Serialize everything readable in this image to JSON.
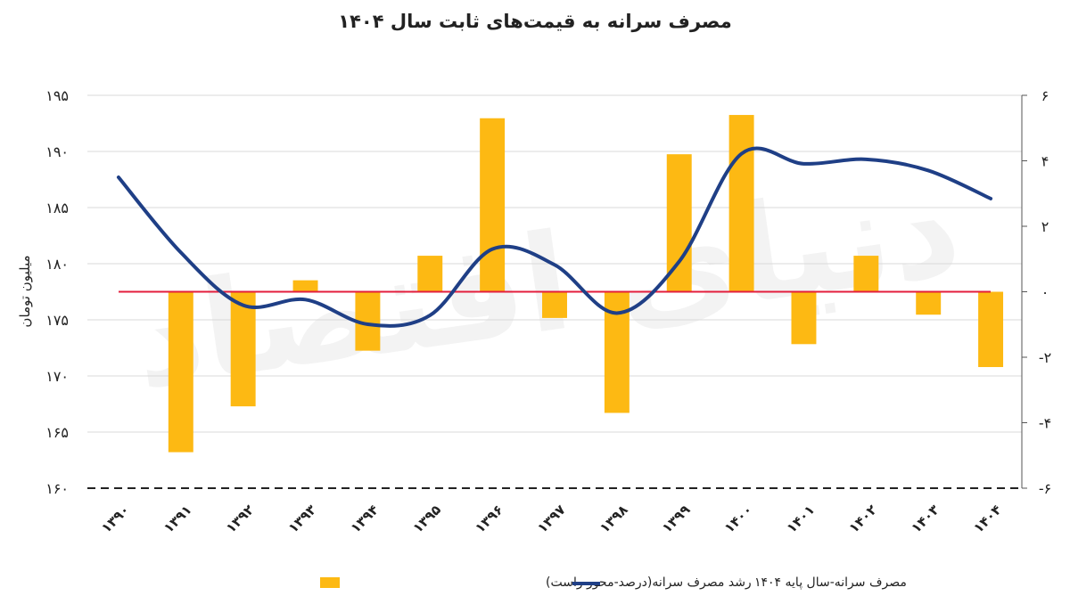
{
  "chart_data": {
    "type": "bar+line",
    "title": "مصرف سرانه به قیمت‌های ثابت سال ۱۴۰۴",
    "ylabel_left": "میلیون تومان",
    "ylim_left": [
      160,
      195
    ],
    "ylim_right": [
      -6,
      6
    ],
    "left_ticks": [
      "۱۶۰",
      "۱۶۵",
      "۱۷۰",
      "۱۷۵",
      "۱۸۰",
      "۱۸۵",
      "۱۹۰",
      "۱۹۵"
    ],
    "right_ticks": [
      "-۶",
      "-۴",
      "-۲",
      "۰",
      "۲",
      "۴",
      "۶"
    ],
    "categories": [
      "۱۳۹۰",
      "۱۳۹۱",
      "۱۳۹۲",
      "۱۳۹۳",
      "۱۳۹۴",
      "۱۳۹۵",
      "۱۳۹۶",
      "۱۳۹۷",
      "۱۳۹۸",
      "۱۳۹۹",
      "۱۴۰۰",
      "۱۴۰۱",
      "۱۴۰۲",
      "۱۴۰۳",
      "۱۴۰۴"
    ],
    "series": [
      {
        "name": "رشد مصرف سرانه(درصد-محور راست)",
        "kind": "bar",
        "axis": "right",
        "color": "#FDB913",
        "values": [
          0,
          -4.9,
          -3.5,
          0.35,
          -1.8,
          1.1,
          5.3,
          -0.8,
          -3.7,
          4.2,
          5.4,
          -1.6,
          1.1,
          -0.7,
          -2.3
        ]
      },
      {
        "name": "مصرف سرانه-سال پایه ۱۴۰۴",
        "kind": "line",
        "axis": "left",
        "color": "#1F3F86",
        "values": [
          187.7,
          181.0,
          176.3,
          176.8,
          174.6,
          175.4,
          181.3,
          179.9,
          175.6,
          180.2,
          189.8,
          188.9,
          189.3,
          188.3,
          185.8
        ]
      }
    ],
    "zero_line_color": "#E31E3C",
    "legend_position": "bottom",
    "grid": "horizontal"
  },
  "watermark": "دنیای اقتصاد"
}
